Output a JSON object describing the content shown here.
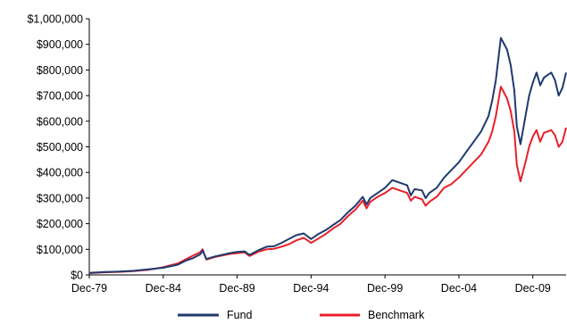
{
  "chart_data": {
    "type": "line",
    "title": "",
    "xlabel": "",
    "ylabel": "",
    "x_tick_labels": [
      "Dec-79",
      "Dec-84",
      "Dec-89",
      "Dec-94",
      "Dec-99",
      "Dec-04",
      "Dec-09"
    ],
    "y_tick_labels": [
      "$0",
      "$100,000",
      "$200,000",
      "$300,000",
      "$400,000",
      "$500,000",
      "$600,000",
      "$700,000",
      "$800,000",
      "$900,000",
      "$1,000,000"
    ],
    "ylim": [
      0,
      1000000
    ],
    "xlim": [
      "1979-12",
      "2012-03"
    ],
    "grid": false,
    "legend_position": "bottom",
    "series": [
      {
        "name": "Fund",
        "color": "#1f3a6e",
        "x": [
          "1979-12",
          "1980-12",
          "1981-12",
          "1982-12",
          "1983-12",
          "1984-12",
          "1985-12",
          "1986-06",
          "1986-12",
          "1987-06",
          "1987-08",
          "1987-11",
          "1988-06",
          "1989-06",
          "1989-12",
          "1990-06",
          "1990-10",
          "1991-06",
          "1991-12",
          "1992-06",
          "1992-12",
          "1993-06",
          "1993-12",
          "1994-06",
          "1994-12",
          "1995-06",
          "1995-12",
          "1996-06",
          "1996-12",
          "1997-06",
          "1997-12",
          "1998-06",
          "1998-09",
          "1998-12",
          "1999-06",
          "1999-12",
          "2000-06",
          "2000-12",
          "2001-06",
          "2001-09",
          "2001-12",
          "2002-06",
          "2002-09",
          "2002-12",
          "2003-06",
          "2003-12",
          "2004-06",
          "2004-12",
          "2005-06",
          "2005-12",
          "2006-06",
          "2006-12",
          "2007-03",
          "2007-06",
          "2007-10",
          "2008-03",
          "2008-06",
          "2008-09",
          "2008-11",
          "2009-02",
          "2009-06",
          "2009-09",
          "2009-12",
          "2010-03",
          "2010-06",
          "2010-09",
          "2010-12",
          "2011-03",
          "2011-06",
          "2011-09",
          "2011-12",
          "2012-03"
        ],
        "values": [
          8000,
          11000,
          13000,
          16000,
          22000,
          28000,
          40000,
          55000,
          65000,
          80000,
          95000,
          62000,
          72000,
          85000,
          90000,
          92000,
          78000,
          98000,
          110000,
          112000,
          125000,
          140000,
          155000,
          162000,
          140000,
          160000,
          175000,
          195000,
          215000,
          245000,
          270000,
          305000,
          275000,
          300000,
          320000,
          340000,
          370000,
          360000,
          350000,
          310000,
          335000,
          330000,
          300000,
          320000,
          340000,
          380000,
          410000,
          440000,
          480000,
          520000,
          560000,
          620000,
          680000,
          760000,
          925000,
          880000,
          820000,
          720000,
          580000,
          510000,
          620000,
          700000,
          750000,
          790000,
          740000,
          770000,
          780000,
          790000,
          760000,
          700000,
          730000,
          790000
        ]
      },
      {
        "name": "Benchmark",
        "color": "#e8202a",
        "x": [
          "1979-12",
          "1980-12",
          "1981-12",
          "1982-12",
          "1983-12",
          "1984-12",
          "1985-12",
          "1986-06",
          "1986-12",
          "1987-06",
          "1987-08",
          "1987-11",
          "1988-06",
          "1989-06",
          "1989-12",
          "1990-06",
          "1990-10",
          "1991-06",
          "1991-12",
          "1992-06",
          "1992-12",
          "1993-06",
          "1993-12",
          "1994-06",
          "1994-12",
          "1995-06",
          "1995-12",
          "1996-06",
          "1996-12",
          "1997-06",
          "1997-12",
          "1998-06",
          "1998-09",
          "1998-12",
          "1999-06",
          "1999-12",
          "2000-06",
          "2000-12",
          "2001-06",
          "2001-09",
          "2001-12",
          "2002-06",
          "2002-09",
          "2002-12",
          "2003-06",
          "2003-12",
          "2004-06",
          "2004-12",
          "2005-06",
          "2005-12",
          "2006-06",
          "2006-12",
          "2007-03",
          "2007-06",
          "2007-10",
          "2008-03",
          "2008-06",
          "2008-09",
          "2008-11",
          "2009-02",
          "2009-06",
          "2009-09",
          "2009-12",
          "2010-03",
          "2010-06",
          "2010-09",
          "2010-12",
          "2011-03",
          "2011-06",
          "2011-09",
          "2011-12",
          "2012-03"
        ],
        "values": [
          7000,
          10000,
          12000,
          15000,
          20000,
          30000,
          45000,
          60000,
          75000,
          88000,
          100000,
          60000,
          70000,
          82000,
          85000,
          88000,
          74000,
          92000,
          100000,
          102000,
          110000,
          120000,
          135000,
          145000,
          125000,
          142000,
          160000,
          182000,
          200000,
          230000,
          255000,
          290000,
          260000,
          285000,
          305000,
          320000,
          340000,
          330000,
          320000,
          290000,
          305000,
          295000,
          270000,
          285000,
          305000,
          340000,
          355000,
          380000,
          410000,
          440000,
          470000,
          520000,
          560000,
          620000,
          735000,
          690000,
          640000,
          560000,
          430000,
          365000,
          440000,
          500000,
          540000,
          565000,
          520000,
          555000,
          560000,
          565000,
          545000,
          500000,
          520000,
          575000
        ]
      }
    ]
  }
}
